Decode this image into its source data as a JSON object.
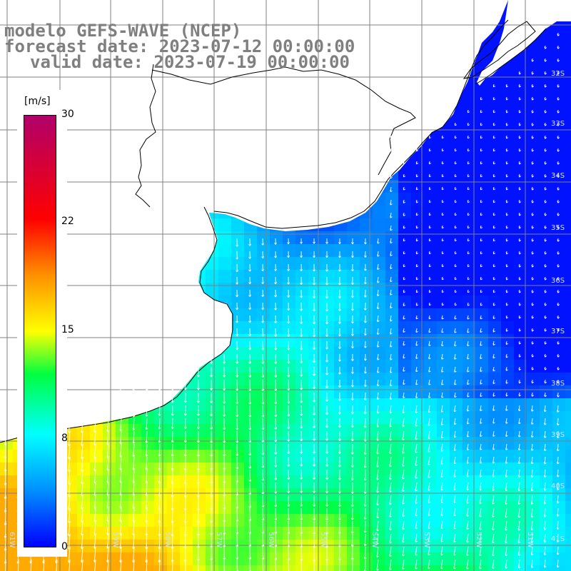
{
  "title": {
    "line1": "modelo GEFS-WAVE (NCEP)",
    "line2": "forecast date: 2023-07-12 00:00:00",
    "line3": "valid date: 2023-07-19 00:00:00"
  },
  "colorbar": {
    "unit": "[m/s]",
    "ticks": [
      "30",
      "22",
      "15",
      "8",
      "0"
    ],
    "tick_values": [
      30,
      22,
      15,
      8,
      0
    ],
    "range": [
      0,
      30
    ],
    "colors": [
      "#0000ff",
      "#0090ff",
      "#00ffff",
      "#00ff40",
      "#ffff00",
      "#ff9000",
      "#ff0000",
      "#b0006a"
    ]
  },
  "map": {
    "lat_labels": [
      "32S",
      "33S",
      "34S",
      "35S",
      "36S",
      "37S",
      "38S",
      "39S",
      "40S",
      "41S"
    ],
    "lon_labels": [
      "61W",
      "60W",
      "59W",
      "58W",
      "57W",
      "56W",
      "55W",
      "54W",
      "53W",
      "52W",
      "51W"
    ],
    "land_color": "#ffffff",
    "grid_color": "#808080",
    "arrow_color": "#ffffff"
  }
}
